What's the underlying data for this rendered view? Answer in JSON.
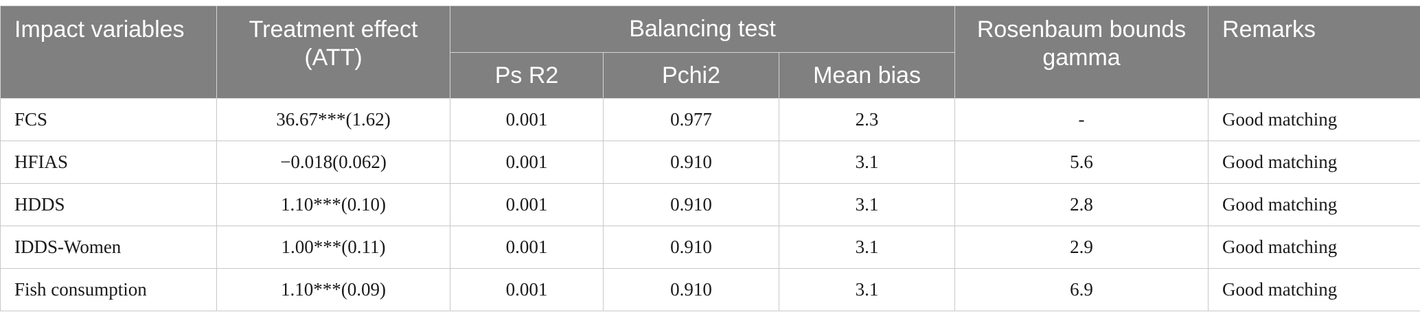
{
  "table": {
    "headers": {
      "impact_variables": "Impact variables",
      "treatment_effect": "Treatment effect (ATT)",
      "balancing_test": "Balancing test",
      "ps_r2": "Ps R2",
      "pchi2": "Pchi2",
      "mean_bias": "Mean bias",
      "rosenbaum": "Rosenbaum bounds gamma",
      "remarks": "Remarks"
    },
    "rows": [
      {
        "variable": "FCS",
        "att": "36.67***(1.62)",
        "ps_r2": "0.001",
        "pchi2": "0.977",
        "mean_bias": "2.3",
        "gamma": "-",
        "remarks": "Good matching"
      },
      {
        "variable": "HFIAS",
        "att": "−0.018(0.062)",
        "ps_r2": "0.001",
        "pchi2": "0.910",
        "mean_bias": "3.1",
        "gamma": "5.6",
        "remarks": "Good matching"
      },
      {
        "variable": "HDDS",
        "att": "1.10***(0.10)",
        "ps_r2": "0.001",
        "pchi2": "0.910",
        "mean_bias": "3.1",
        "gamma": "2.8",
        "remarks": "Good matching"
      },
      {
        "variable": "IDDS-Women",
        "att": "1.00***(0.11)",
        "ps_r2": "0.001",
        "pchi2": "0.910",
        "mean_bias": "3.1",
        "gamma": "2.9",
        "remarks": "Good matching"
      },
      {
        "variable": "Fish consumption",
        "att": "1.10***(0.09)",
        "ps_r2": "0.001",
        "pchi2": "0.910",
        "mean_bias": "3.1",
        "gamma": "6.9",
        "remarks": "Good matching"
      }
    ]
  },
  "colors": {
    "header_bg": "#808080",
    "header_text": "#ffffff",
    "border": "#c8c8c8"
  }
}
